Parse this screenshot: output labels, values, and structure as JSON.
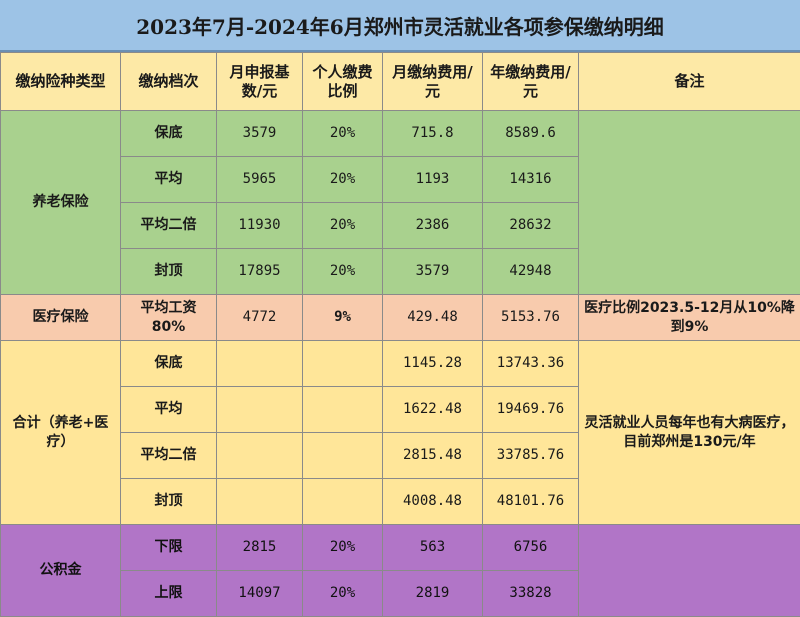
{
  "title": "2023年7月-2024年6月郑州市灵活就业各项参保缴纳明细",
  "headers": {
    "type": "缴纳险种类型",
    "tier": "缴纳档次",
    "base": "月申报基数/元",
    "rate": "个人缴费比例",
    "monthly": "月缴纳费用/元",
    "yearly": "年缴纳费用/元",
    "note": "备注"
  },
  "pension": {
    "label": "养老保险",
    "rows": [
      {
        "tier": "保底",
        "base": "3579",
        "rate": "20%",
        "monthly": "715.8",
        "yearly": "8589.6"
      },
      {
        "tier": "平均",
        "base": "5965",
        "rate": "20%",
        "monthly": "1193",
        "yearly": "14316"
      },
      {
        "tier": "平均二倍",
        "base": "11930",
        "rate": "20%",
        "monthly": "2386",
        "yearly": "28632"
      },
      {
        "tier": "封顶",
        "base": "17895",
        "rate": "20%",
        "monthly": "3579",
        "yearly": "42948"
      }
    ]
  },
  "medical": {
    "label": "医疗保险",
    "tier": "平均工资80%",
    "base": "4772",
    "rate": "9%",
    "monthly": "429.48",
    "yearly": "5153.76",
    "note": "医疗比例2023.5-12月从10%降到9%"
  },
  "total": {
    "label": "合计（养老+医疗）",
    "note": "灵活就业人员每年也有大病医疗，目前郑州是130元/年",
    "rows": [
      {
        "tier": "保底",
        "monthly": "1145.28",
        "yearly": "13743.36"
      },
      {
        "tier": "平均",
        "monthly": "1622.48",
        "yearly": "19469.76"
      },
      {
        "tier": "平均二倍",
        "monthly": "2815.48",
        "yearly": "33785.76"
      },
      {
        "tier": "封顶",
        "monthly": "4008.48",
        "yearly": "48101.76"
      }
    ]
  },
  "fund": {
    "label": "公积金",
    "rows": [
      {
        "tier": "下限",
        "base": "2815",
        "rate": "20%",
        "monthly": "563",
        "yearly": "6756"
      },
      {
        "tier": "上限",
        "base": "14097",
        "rate": "20%",
        "monthly": "2819",
        "yearly": "33828"
      }
    ]
  }
}
